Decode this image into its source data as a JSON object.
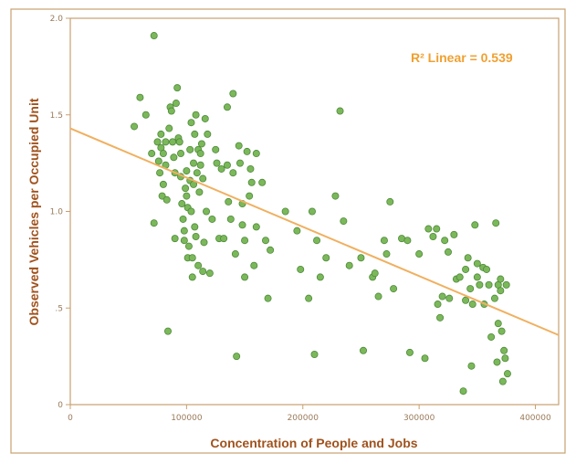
{
  "colors": {
    "frame": "#c8a070",
    "axis": "#c8a070",
    "point_fill": "#7bb85a",
    "point_stroke": "#4e8a3a",
    "fit_line": "#f0b060",
    "axis_title": "#a0521d",
    "annotation": "#f0a030"
  },
  "chart_data": {
    "type": "scatter",
    "title": "",
    "xlabel": "Concentration of People and Jobs",
    "ylabel": "Observed Vehicles per Occupied Unit",
    "xlim": [
      0,
      420000
    ],
    "ylim": [
      0,
      2.0
    ],
    "xticks": [
      0,
      100000,
      200000,
      300000,
      400000
    ],
    "xtick_labels": [
      "0",
      "100000",
      "200000",
      "300000",
      "400000"
    ],
    "yticks": [
      0,
      0.5,
      1.0,
      1.5,
      2.0
    ],
    "ytick_labels": [
      "0",
      ".5",
      "1.0",
      "1.5",
      "2.0"
    ],
    "grid": false,
    "annotation": "R² Linear = 0.539",
    "fit_line": {
      "x": [
        0,
        420000
      ],
      "y": [
        1.43,
        0.36
      ]
    },
    "points": [
      [
        55000,
        1.44
      ],
      [
        60000,
        1.59
      ],
      [
        65000,
        1.5
      ],
      [
        72000,
        1.91
      ],
      [
        70000,
        1.3
      ],
      [
        72000,
        0.94
      ],
      [
        75000,
        1.36
      ],
      [
        76000,
        1.26
      ],
      [
        77000,
        1.2
      ],
      [
        78000,
        1.33
      ],
      [
        78000,
        1.4
      ],
      [
        79000,
        1.08
      ],
      [
        80000,
        1.14
      ],
      [
        80000,
        1.3
      ],
      [
        82000,
        1.36
      ],
      [
        82000,
        1.24
      ],
      [
        83000,
        1.06
      ],
      [
        84000,
        0.38
      ],
      [
        85000,
        1.43
      ],
      [
        86000,
        1.54
      ],
      [
        87000,
        1.52
      ],
      [
        88000,
        1.36
      ],
      [
        89000,
        1.28
      ],
      [
        90000,
        1.2
      ],
      [
        90000,
        0.86
      ],
      [
        91000,
        1.56
      ],
      [
        92000,
        1.64
      ],
      [
        93000,
        1.38
      ],
      [
        94000,
        1.36
      ],
      [
        95000,
        1.3
      ],
      [
        95000,
        1.18
      ],
      [
        96000,
        1.04
      ],
      [
        97000,
        0.96
      ],
      [
        98000,
        0.9
      ],
      [
        98000,
        0.85
      ],
      [
        99000,
        1.12
      ],
      [
        100000,
        1.21
      ],
      [
        100000,
        1.08
      ],
      [
        101000,
        1.02
      ],
      [
        101000,
        0.76
      ],
      [
        102000,
        0.82
      ],
      [
        103000,
        1.32
      ],
      [
        103000,
        1.16
      ],
      [
        104000,
        1.46
      ],
      [
        104000,
        1.0
      ],
      [
        105000,
        0.66
      ],
      [
        105000,
        0.76
      ],
      [
        106000,
        1.25
      ],
      [
        106000,
        1.14
      ],
      [
        107000,
        1.4
      ],
      [
        107000,
        0.92
      ],
      [
        108000,
        1.5
      ],
      [
        108000,
        0.87
      ],
      [
        109000,
        1.2
      ],
      [
        110000,
        1.32
      ],
      [
        110000,
        0.72
      ],
      [
        111000,
        1.1
      ],
      [
        112000,
        1.3
      ],
      [
        112000,
        1.24
      ],
      [
        113000,
        1.35
      ],
      [
        114000,
        1.17
      ],
      [
        114000,
        0.69
      ],
      [
        115000,
        0.84
      ],
      [
        116000,
        1.48
      ],
      [
        117000,
        1.0
      ],
      [
        118000,
        1.4
      ],
      [
        120000,
        0.68
      ],
      [
        122000,
        0.96
      ],
      [
        125000,
        1.32
      ],
      [
        126000,
        1.25
      ],
      [
        128000,
        0.86
      ],
      [
        130000,
        1.22
      ],
      [
        132000,
        0.86
      ],
      [
        135000,
        1.54
      ],
      [
        135000,
        1.24
      ],
      [
        136000,
        1.05
      ],
      [
        138000,
        0.96
      ],
      [
        140000,
        1.61
      ],
      [
        140000,
        1.2
      ],
      [
        142000,
        0.78
      ],
      [
        143000,
        0.25
      ],
      [
        145000,
        1.34
      ],
      [
        146000,
        1.25
      ],
      [
        148000,
        1.04
      ],
      [
        148000,
        0.93
      ],
      [
        150000,
        0.85
      ],
      [
        150000,
        0.66
      ],
      [
        152000,
        1.31
      ],
      [
        154000,
        1.08
      ],
      [
        155000,
        1.22
      ],
      [
        156000,
        1.15
      ],
      [
        158000,
        0.72
      ],
      [
        160000,
        1.3
      ],
      [
        160000,
        0.92
      ],
      [
        165000,
        1.15
      ],
      [
        168000,
        0.85
      ],
      [
        170000,
        0.55
      ],
      [
        172000,
        0.8
      ],
      [
        185000,
        1.0
      ],
      [
        195000,
        0.9
      ],
      [
        198000,
        0.7
      ],
      [
        205000,
        0.55
      ],
      [
        208000,
        1.0
      ],
      [
        210000,
        0.26
      ],
      [
        212000,
        0.85
      ],
      [
        215000,
        0.66
      ],
      [
        220000,
        0.76
      ],
      [
        228000,
        1.08
      ],
      [
        232000,
        1.52
      ],
      [
        235000,
        0.95
      ],
      [
        240000,
        0.72
      ],
      [
        250000,
        0.76
      ],
      [
        252000,
        0.28
      ],
      [
        260000,
        0.66
      ],
      [
        262000,
        0.68
      ],
      [
        265000,
        0.56
      ],
      [
        270000,
        0.85
      ],
      [
        272000,
        0.78
      ],
      [
        275000,
        1.05
      ],
      [
        278000,
        0.6
      ],
      [
        285000,
        0.86
      ],
      [
        290000,
        0.85
      ],
      [
        292000,
        0.27
      ],
      [
        300000,
        0.78
      ],
      [
        305000,
        0.24
      ],
      [
        308000,
        0.91
      ],
      [
        312000,
        0.87
      ],
      [
        315000,
        0.91
      ],
      [
        316000,
        0.52
      ],
      [
        318000,
        0.45
      ],
      [
        320000,
        0.56
      ],
      [
        322000,
        0.85
      ],
      [
        325000,
        0.79
      ],
      [
        326000,
        0.55
      ],
      [
        330000,
        0.88
      ],
      [
        332000,
        0.65
      ],
      [
        335000,
        0.66
      ],
      [
        338000,
        0.07
      ],
      [
        340000,
        0.7
      ],
      [
        340000,
        0.54
      ],
      [
        342000,
        0.76
      ],
      [
        344000,
        0.6
      ],
      [
        345000,
        0.2
      ],
      [
        346000,
        0.52
      ],
      [
        348000,
        0.93
      ],
      [
        350000,
        0.66
      ],
      [
        350000,
        0.73
      ],
      [
        352000,
        0.62
      ],
      [
        355000,
        0.71
      ],
      [
        356000,
        0.52
      ],
      [
        358000,
        0.7
      ],
      [
        360000,
        0.62
      ],
      [
        362000,
        0.35
      ],
      [
        365000,
        0.55
      ],
      [
        366000,
        0.94
      ],
      [
        367000,
        0.22
      ],
      [
        368000,
        0.62
      ],
      [
        368000,
        0.42
      ],
      [
        370000,
        0.65
      ],
      [
        370000,
        0.59
      ],
      [
        371000,
        0.38
      ],
      [
        372000,
        0.12
      ],
      [
        373000,
        0.28
      ],
      [
        374000,
        0.24
      ],
      [
        375000,
        0.62
      ],
      [
        376000,
        0.16
      ]
    ]
  }
}
